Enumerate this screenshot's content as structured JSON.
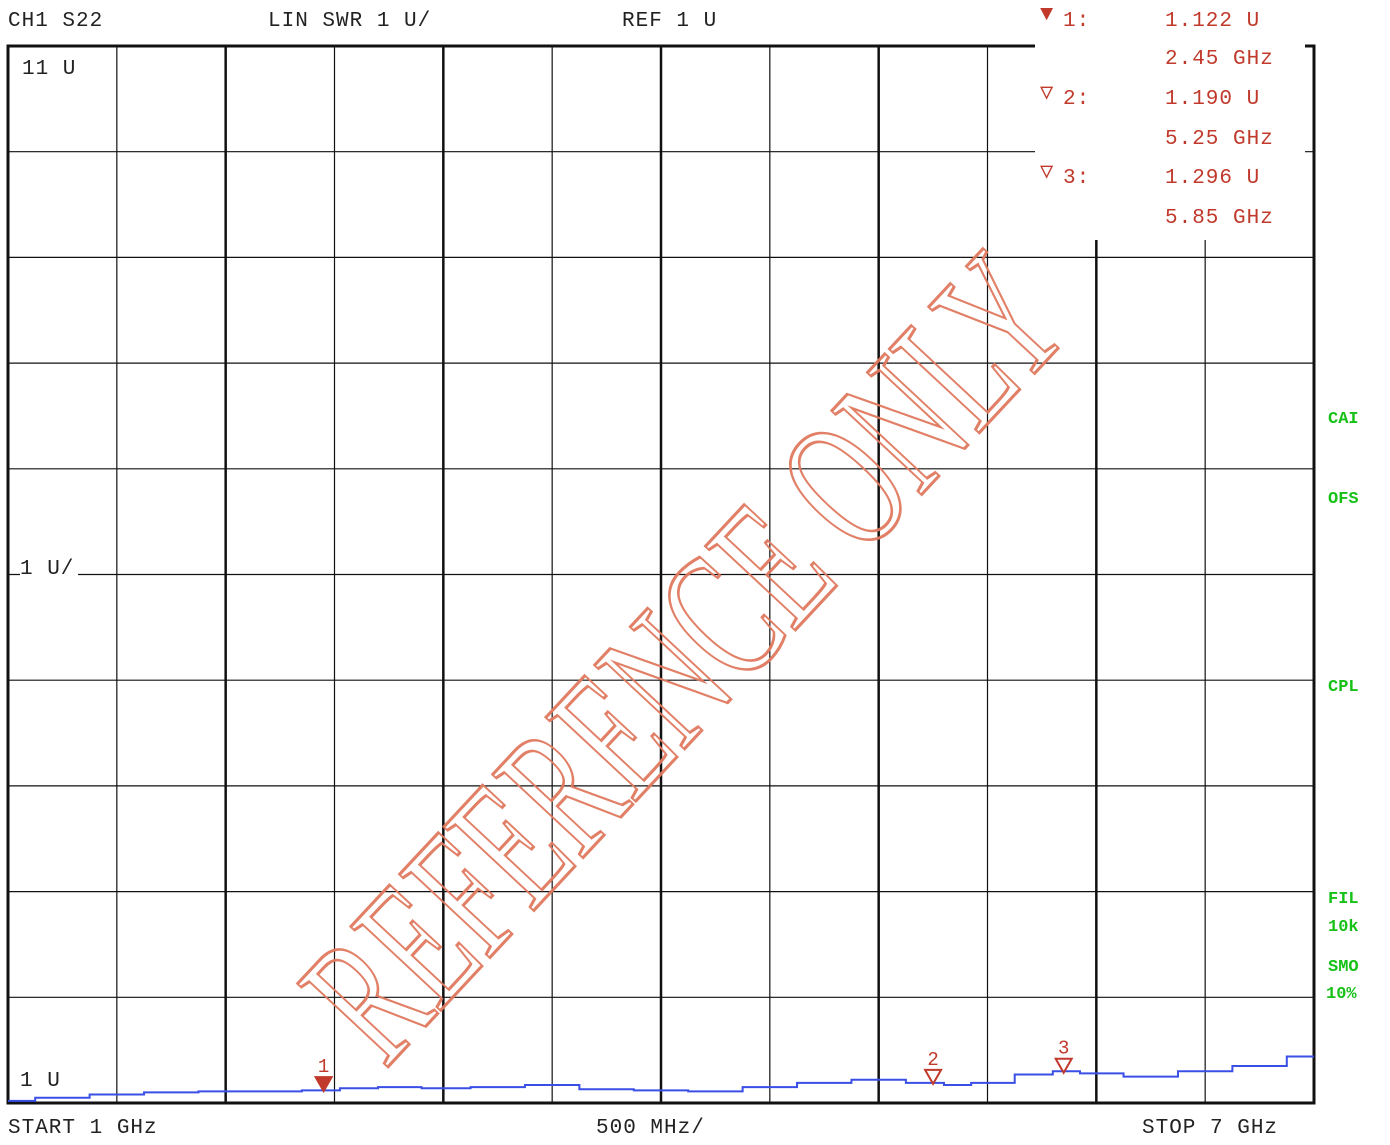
{
  "header": {
    "channel": "CH1 S22",
    "format": "LIN SWR 1 U/",
    "reference": "REF 1 U"
  },
  "markers": [
    {
      "number": "1",
      "label": "1:",
      "value": "1.122  U",
      "freq": "2.45 GHz",
      "filled": true,
      "freq_ghz": 2.45,
      "swr": 1.122
    },
    {
      "number": "2",
      "label": "2:",
      "value": "1.190  U",
      "freq": "5.25 GHz",
      "filled": false,
      "freq_ghz": 5.25,
      "swr": 1.19
    },
    {
      "number": "3",
      "label": "3:",
      "value": "1.296  U",
      "freq": "5.85 GHz",
      "filled": false,
      "freq_ghz": 5.85,
      "swr": 1.296
    }
  ],
  "side_labels": {
    "cal": "CAI",
    "ofs": "OFS",
    "cpl": "CPL",
    "fil": "FIL",
    "fil_value": "10k",
    "smo": "SMO",
    "smo_value": "10%"
  },
  "footer": {
    "start": "START  1 GHz",
    "span": "500 MHz/",
    "stop": "STOP 7 GHz"
  },
  "watermark": "REFERENCE ONLY",
  "colors": {
    "trace": "#3a4fe6",
    "marker": "#c0392b",
    "watermark": "#e07a5f",
    "side_labels": "#17c117"
  },
  "chart_data": {
    "type": "line",
    "title": "",
    "xlabel": "",
    "ylabel": "",
    "xlim": [
      1,
      7
    ],
    "ylim": [
      1,
      11
    ],
    "y_tick_labels": {
      "top": "11 U",
      "middle": "1 U/",
      "bottom": "1 U"
    },
    "grid": true,
    "series": [
      {
        "x": [
          1.0,
          1.25,
          1.5,
          1.75,
          2.0,
          2.25,
          2.45,
          2.6,
          2.8,
          3.0,
          3.25,
          3.5,
          3.75,
          4.0,
          4.25,
          4.5,
          4.75,
          5.0,
          5.25,
          5.35,
          5.5,
          5.75,
          5.85,
          6.0,
          6.25,
          6.5,
          6.75,
          7.0
        ],
        "y": [
          1.02,
          1.05,
          1.08,
          1.1,
          1.11,
          1.11,
          1.12,
          1.14,
          1.15,
          1.14,
          1.15,
          1.17,
          1.13,
          1.12,
          1.11,
          1.15,
          1.19,
          1.22,
          1.19,
          1.17,
          1.19,
          1.27,
          1.3,
          1.28,
          1.25,
          1.3,
          1.35,
          1.44
        ]
      }
    ]
  }
}
